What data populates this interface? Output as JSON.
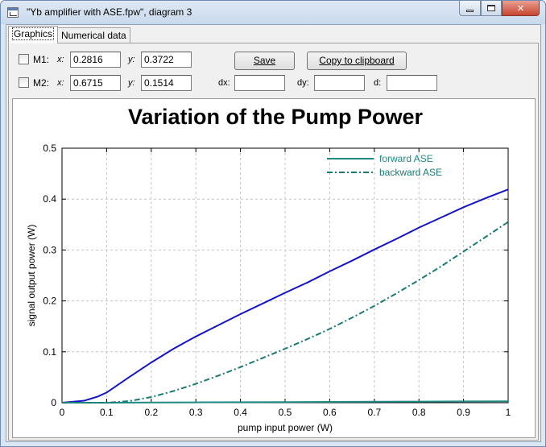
{
  "window": {
    "title": "\"Yb amplifier with ASE.fpw\", diagram 3"
  },
  "tabs": [
    {
      "label": "Graphics",
      "active": true
    },
    {
      "label": "Numerical data",
      "active": false
    }
  ],
  "markers": {
    "m1": {
      "label": "M1:",
      "x_label": "x:",
      "x_value": "0.2816",
      "y_label": "y:",
      "y_value": "0.3722"
    },
    "m2": {
      "label": "M2:",
      "x_label": "x:",
      "x_value": "0.6715",
      "y_label": "y:",
      "y_value": "0.1514"
    },
    "dx_label": "dx:",
    "dx_value": "",
    "dy_label": "dy:",
    "dy_value": "",
    "d_label": "d:",
    "d_value": ""
  },
  "buttons": {
    "save": "Save",
    "copy": "Copy to clipboard"
  },
  "colors": {
    "signal": "#1414c8",
    "forward": "#1f8a84",
    "backward": "#1a7a74"
  },
  "chart_data": {
    "type": "line",
    "title": "Variation of the Pump Power",
    "xlabel": "pump input power (W)",
    "ylabel": "signal output power (W)",
    "xlim": [
      0,
      1
    ],
    "ylim": [
      0,
      0.5
    ],
    "xticks": [
      "0",
      "0.1",
      "0.2",
      "0.3",
      "0.4",
      "0.5",
      "0.6",
      "0.7",
      "0.8",
      "0.9",
      "1"
    ],
    "yticks": [
      "0",
      "0.1",
      "0.2",
      "0.3",
      "0.4",
      "0.5"
    ],
    "grid": true,
    "legend_position": "top-right",
    "series": [
      {
        "style": "solid",
        "color": "#1414c8",
        "x": [
          0,
          0.05,
          0.08,
          0.1,
          0.12,
          0.15,
          0.2,
          0.25,
          0.3,
          0.35,
          0.4,
          0.45,
          0.5,
          0.55,
          0.6,
          0.65,
          0.7,
          0.75,
          0.8,
          0.85,
          0.9,
          0.95,
          1.0
        ],
        "y": [
          0,
          0.004,
          0.012,
          0.02,
          0.032,
          0.05,
          0.079,
          0.106,
          0.13,
          0.152,
          0.174,
          0.195,
          0.216,
          0.236,
          0.258,
          0.279,
          0.301,
          0.322,
          0.344,
          0.364,
          0.384,
          0.402,
          0.419
        ]
      },
      {
        "name": "forward ASE",
        "style": "solid",
        "color": "#1f8a84",
        "x": [
          0,
          0.1,
          0.2,
          0.3,
          0.4,
          0.5,
          0.6,
          0.7,
          0.8,
          0.9,
          1.0
        ],
        "y": [
          0,
          0,
          0.0003,
          0.0006,
          0.001,
          0.0013,
          0.0016,
          0.0019,
          0.0022,
          0.0025,
          0.0028
        ]
      },
      {
        "name": "backward ASE",
        "style": "dashdot",
        "color": "#1a7a74",
        "x": [
          0,
          0.1,
          0.15,
          0.2,
          0.25,
          0.3,
          0.35,
          0.4,
          0.45,
          0.5,
          0.55,
          0.6,
          0.65,
          0.7,
          0.75,
          0.8,
          0.85,
          0.9,
          0.95,
          1.0
        ],
        "y": [
          0,
          0,
          0.003,
          0.011,
          0.023,
          0.037,
          0.053,
          0.07,
          0.088,
          0.106,
          0.125,
          0.145,
          0.167,
          0.19,
          0.215,
          0.241,
          0.268,
          0.297,
          0.326,
          0.355
        ]
      }
    ]
  }
}
